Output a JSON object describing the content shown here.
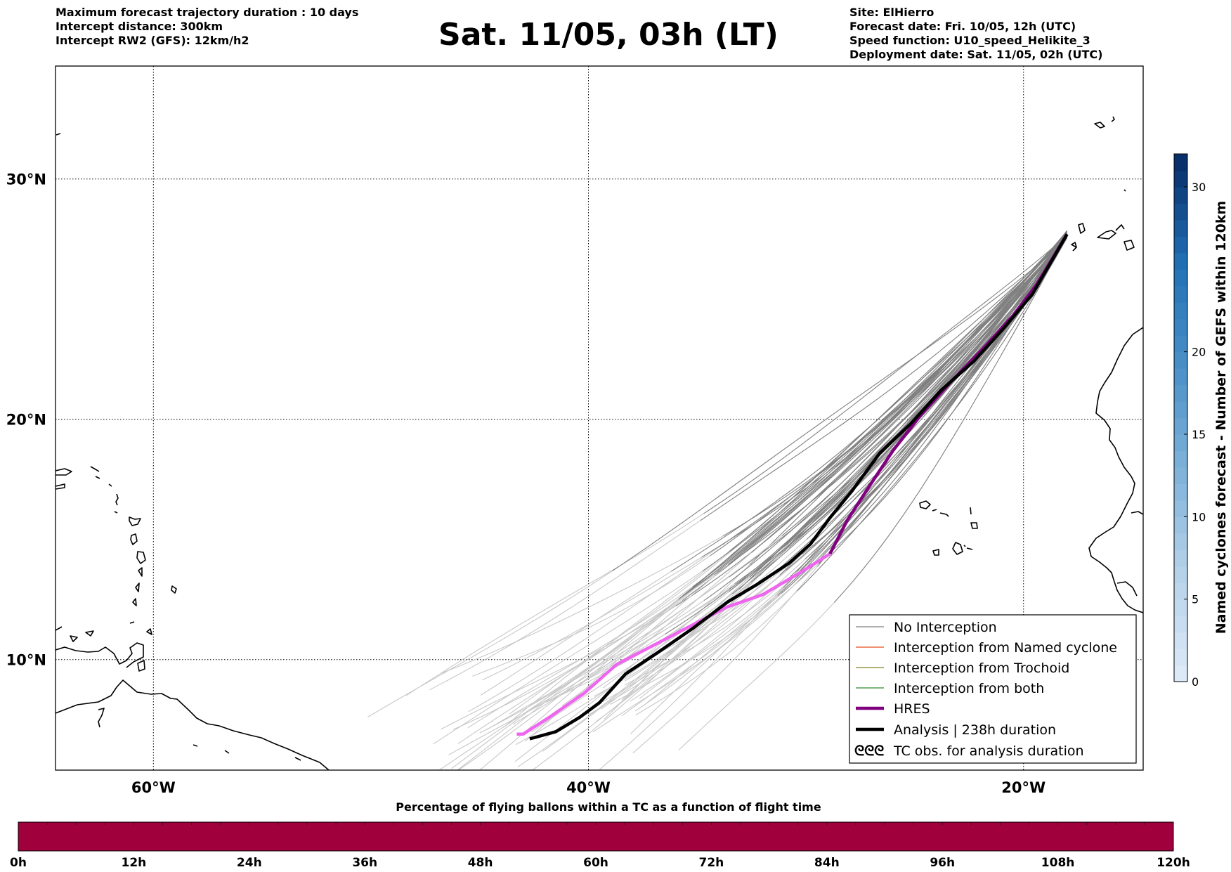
{
  "header": {
    "left_lines": [
      "Maximum forecast trajectory duration : 10 days",
      "Intercept distance: 300km",
      "Intercept RW2 (GFS):  12km/h2"
    ],
    "title": "Sat. 11/05, 03h (LT)",
    "right_lines": [
      "Site: ElHierro",
      "Forecast date: Fri. 10/05, 12h (UTC)",
      "Speed function: U10_speed_Helikite_3",
      "Deployment date: Sat. 11/05, 02h (UTC)"
    ]
  },
  "map": {
    "lon_range": [
      -64.5,
      -14.5
    ],
    "lat_range": [
      5.4,
      34.7
    ],
    "lon_ticks": [
      {
        "value": -60,
        "label": "60°W"
      },
      {
        "value": -40,
        "label": "40°W"
      },
      {
        "value": -20,
        "label": "20°W"
      }
    ],
    "lat_ticks": [
      {
        "value": 30,
        "label": "30°N"
      },
      {
        "value": 20,
        "label": "20°N"
      },
      {
        "value": 10,
        "label": "10°N"
      }
    ],
    "gridlines": "dotted"
  },
  "legend": {
    "items": [
      {
        "label": "No Interception",
        "color": "#808080",
        "style": "thin"
      },
      {
        "label": "Interception from Named cyclone",
        "color": "#e8501e",
        "style": "thin"
      },
      {
        "label": "Interception from Trochoid",
        "color": "#808020",
        "style": "thin"
      },
      {
        "label": "Interception from both",
        "color": "#2e8b2e",
        "style": "thin"
      },
      {
        "label": "HRES",
        "color": "#800080",
        "style": "thick"
      },
      {
        "label": "Analysis | 238h duration",
        "color": "#000000",
        "style": "thick"
      },
      {
        "label": "TC obs. for analysis duration",
        "color": "#000000",
        "style": "symbol"
      }
    ]
  },
  "colorbar_right": {
    "label": "Named cyclones forecast - Number of GEFS within 120km",
    "range": [
      0,
      32
    ],
    "ticks": [
      "0",
      "5",
      "10",
      "15",
      "20",
      "30"
    ],
    "tick_values": [
      0,
      5,
      10,
      15,
      20,
      30
    ],
    "colors": [
      "#dce9f6",
      "#b5d1e9",
      "#7fb2d9",
      "#4a90c8",
      "#2171b5",
      "#08306b"
    ]
  },
  "colorbar_bottom": {
    "title": "Percentage of flying ballons within a TC as a function of flight time",
    "tick_labels": [
      "0h",
      "12h",
      "24h",
      "36h",
      "48h",
      "60h",
      "72h",
      "84h",
      "96h",
      "108h",
      "120h"
    ],
    "fill_color": "#a0003c",
    "percentage": 0
  },
  "chart_data": {
    "type": "line",
    "origin": {
      "lon": -18.0,
      "lat": 27.7
    },
    "series": [
      {
        "name": "HRES",
        "points": [
          [
            -18.0,
            27.7
          ],
          [
            -18.6,
            26.8
          ],
          [
            -19.4,
            25.6
          ],
          [
            -20.5,
            24.3
          ],
          [
            -21.8,
            23.0
          ],
          [
            -23.3,
            21.6
          ],
          [
            -24.7,
            20.2
          ],
          [
            -26.0,
            18.7
          ],
          [
            -27.1,
            17.2
          ],
          [
            -28.1,
            15.8
          ],
          [
            -28.9,
            14.4
          ],
          [
            -30.3,
            13.6
          ],
          [
            -32.0,
            12.7
          ],
          [
            -33.6,
            12.2
          ],
          [
            -35.3,
            11.4
          ],
          [
            -37.0,
            10.6
          ],
          [
            -38.7,
            9.8
          ],
          [
            -40.2,
            8.6
          ],
          [
            -41.8,
            7.6
          ],
          [
            -43.0,
            6.9
          ],
          [
            -43.3,
            6.9
          ]
        ]
      },
      {
        "name": "Analysis | 238h duration",
        "points": [
          [
            -18.0,
            27.7
          ],
          [
            -18.7,
            26.6
          ],
          [
            -19.6,
            25.2
          ],
          [
            -20.9,
            23.8
          ],
          [
            -22.3,
            22.4
          ],
          [
            -23.8,
            21.2
          ],
          [
            -25.2,
            19.8
          ],
          [
            -26.6,
            18.6
          ],
          [
            -27.9,
            17.0
          ],
          [
            -28.9,
            15.9
          ],
          [
            -29.8,
            14.8
          ],
          [
            -30.8,
            14.0
          ],
          [
            -32.3,
            13.1
          ],
          [
            -33.6,
            12.4
          ],
          [
            -35.2,
            11.3
          ],
          [
            -36.8,
            10.3
          ],
          [
            -38.3,
            9.4
          ],
          [
            -39.5,
            8.2
          ],
          [
            -40.4,
            7.6
          ],
          [
            -41.5,
            7.0
          ],
          [
            -42.7,
            6.7
          ]
        ]
      }
    ]
  }
}
